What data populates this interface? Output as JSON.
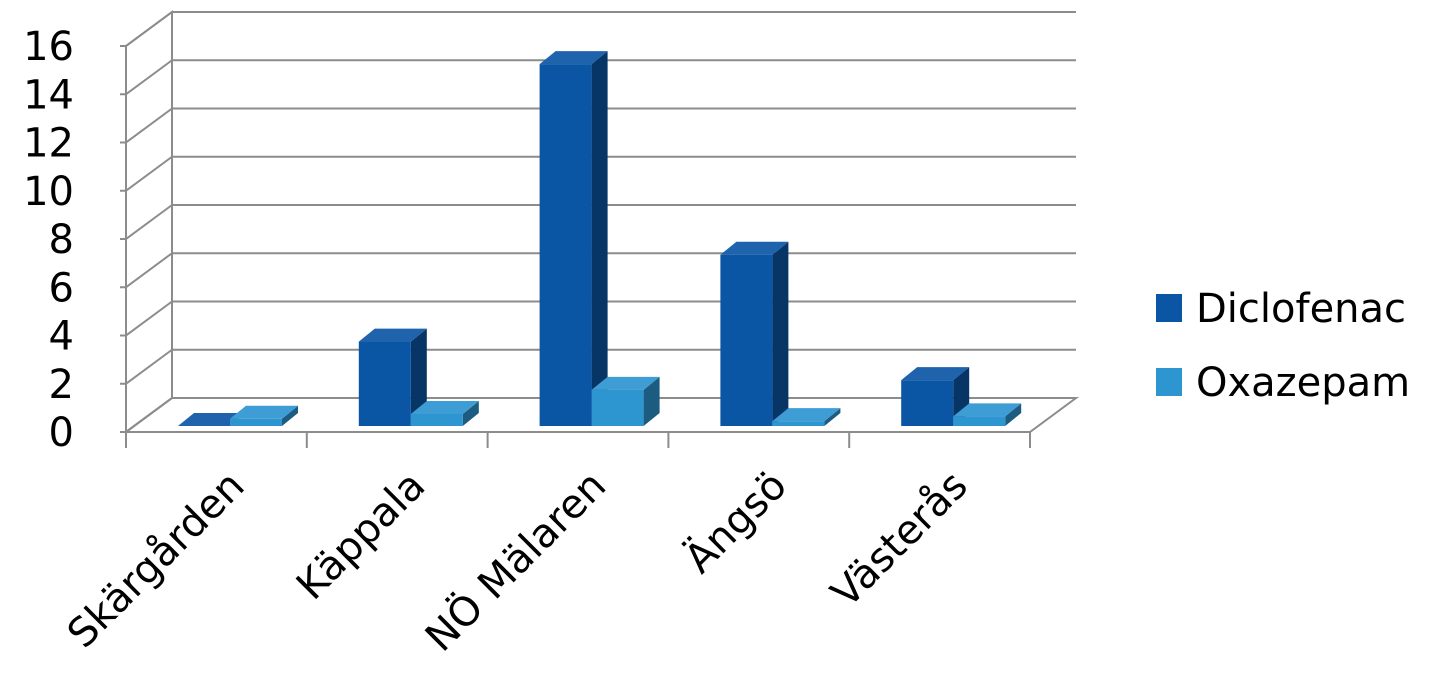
{
  "chart_data": {
    "type": "bar",
    "style": "3d-clustered-column",
    "categories": [
      "Skärgården",
      "Käppala",
      "NÖ Mälaren",
      "Ängsö",
      "Västerås"
    ],
    "series": [
      {
        "name": "Diclofenac",
        "values": [
          0,
          3.5,
          15,
          7.1,
          1.9
        ],
        "color": "#0b55a5"
      },
      {
        "name": "Oxazepam",
        "values": [
          0.3,
          0.5,
          1.5,
          0.2,
          0.4
        ],
        "color": "#2d95d0"
      }
    ],
    "ylim": [
      0,
      16
    ],
    "yticks": [
      "0",
      "2",
      "4",
      "6",
      "8",
      "10",
      "12",
      "14",
      "16"
    ],
    "grid": true,
    "legend_position": "right",
    "title": "",
    "xlabel": "",
    "ylabel": ""
  }
}
